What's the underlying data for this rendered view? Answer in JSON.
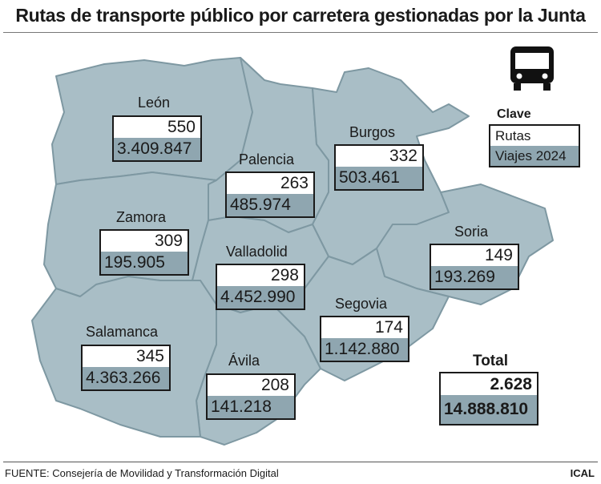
{
  "title": "Rutas de transporte público por carretera gestionadas por la Junta",
  "colors": {
    "map_fill": "#a9bec6",
    "border": "#7e98a2",
    "viajes_fill": "#8fa6b0"
  },
  "icon": "bus-icon",
  "legend": {
    "title": "Clave",
    "rutas": "Rutas",
    "viajes": "Viajes 2024"
  },
  "provinces": [
    {
      "name": "León",
      "rutas": "550",
      "viajes": "3.409.847"
    },
    {
      "name": "Palencia",
      "rutas": "263",
      "viajes": "485.974"
    },
    {
      "name": "Burgos",
      "rutas": "332",
      "viajes": "503.461"
    },
    {
      "name": "Zamora",
      "rutas": "309",
      "viajes": "195.905"
    },
    {
      "name": "Valladolid",
      "rutas": "298",
      "viajes": "4.452.990"
    },
    {
      "name": "Soria",
      "rutas": "149",
      "viajes": "193.269"
    },
    {
      "name": "Segovia",
      "rutas": "174",
      "viajes": "1.142.880"
    },
    {
      "name": "Salamanca",
      "rutas": "345",
      "viajes": "4.363.266"
    },
    {
      "name": "Ávila",
      "rutas": "208",
      "viajes": "141.218"
    }
  ],
  "total": {
    "label": "Total",
    "rutas": "2.628",
    "viajes": "14.888.810"
  },
  "source": "FUENTE: Consejería de Movilidad y Transformación Digital",
  "credit": "ICAL"
}
